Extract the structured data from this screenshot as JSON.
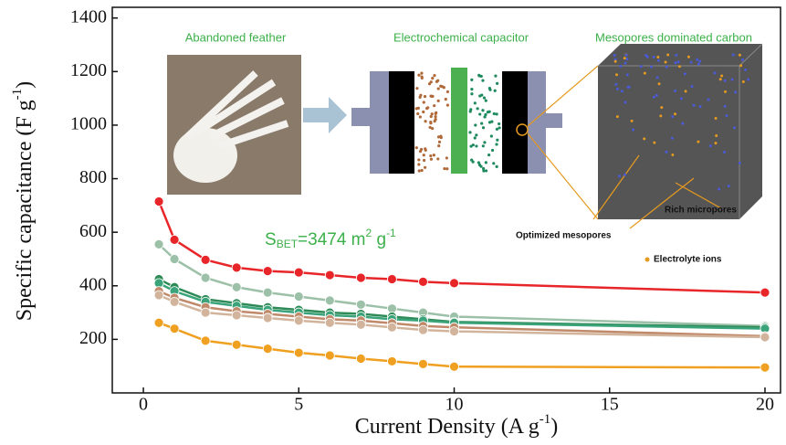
{
  "chart_data": {
    "type": "line",
    "x": [
      0.5,
      1,
      2,
      3,
      4,
      5,
      6,
      7,
      8,
      9,
      10,
      20
    ],
    "series": [
      {
        "color": "#e8262a",
        "values": [
          715,
          572,
          497,
          468,
          455,
          450,
          440,
          430,
          425,
          415,
          410,
          375
        ]
      },
      {
        "color": "#9cc0a8",
        "values": [
          555,
          500,
          430,
          395,
          375,
          360,
          345,
          330,
          315,
          300,
          285,
          250
        ]
      },
      {
        "color": "#2e8b57",
        "values": [
          425,
          395,
          350,
          335,
          320,
          310,
          300,
          295,
          285,
          275,
          265,
          245
        ]
      },
      {
        "color": "#3aa37a",
        "values": [
          410,
          380,
          340,
          325,
          310,
          300,
          290,
          285,
          275,
          270,
          262,
          240
        ]
      },
      {
        "color": "#c08a6a",
        "values": [
          380,
          355,
          320,
          305,
          295,
          285,
          275,
          270,
          260,
          250,
          245,
          212
        ]
      },
      {
        "color": "#d2b49c",
        "values": [
          365,
          340,
          300,
          290,
          280,
          270,
          262,
          255,
          245,
          235,
          230,
          208
        ]
      },
      {
        "color": "#f0a020",
        "values": [
          262,
          240,
          195,
          180,
          165,
          150,
          140,
          128,
          118,
          108,
          98,
          95
        ]
      }
    ],
    "xlim": [
      -1,
      20.5
    ],
    "ylim": [
      0,
      1440
    ],
    "xticks": [
      0,
      5,
      10,
      15,
      20
    ],
    "yticks": [
      200,
      400,
      600,
      800,
      1000,
      1200,
      1400
    ],
    "xlabel": {
      "text": "Current Density (A g",
      "sup": "-1",
      "end": ")"
    },
    "ylabel": {
      "text": "Specific capacitance (F g",
      "sup": "-1",
      "end": ")"
    },
    "annotations": {
      "feather": "Abandoned feather",
      "capacitor": "Electrochemical capacitor",
      "carbon": "Mesopores dominated carbon",
      "sbet": {
        "main": "S",
        "sub": "BET",
        "rest": "=3474 m",
        "sup": "2",
        "unit": " g",
        "sup2": "-1"
      },
      "mesopores": "Optimized mesopores",
      "micropores": "Rich micropores",
      "ions": "Electrolyte ions"
    }
  }
}
